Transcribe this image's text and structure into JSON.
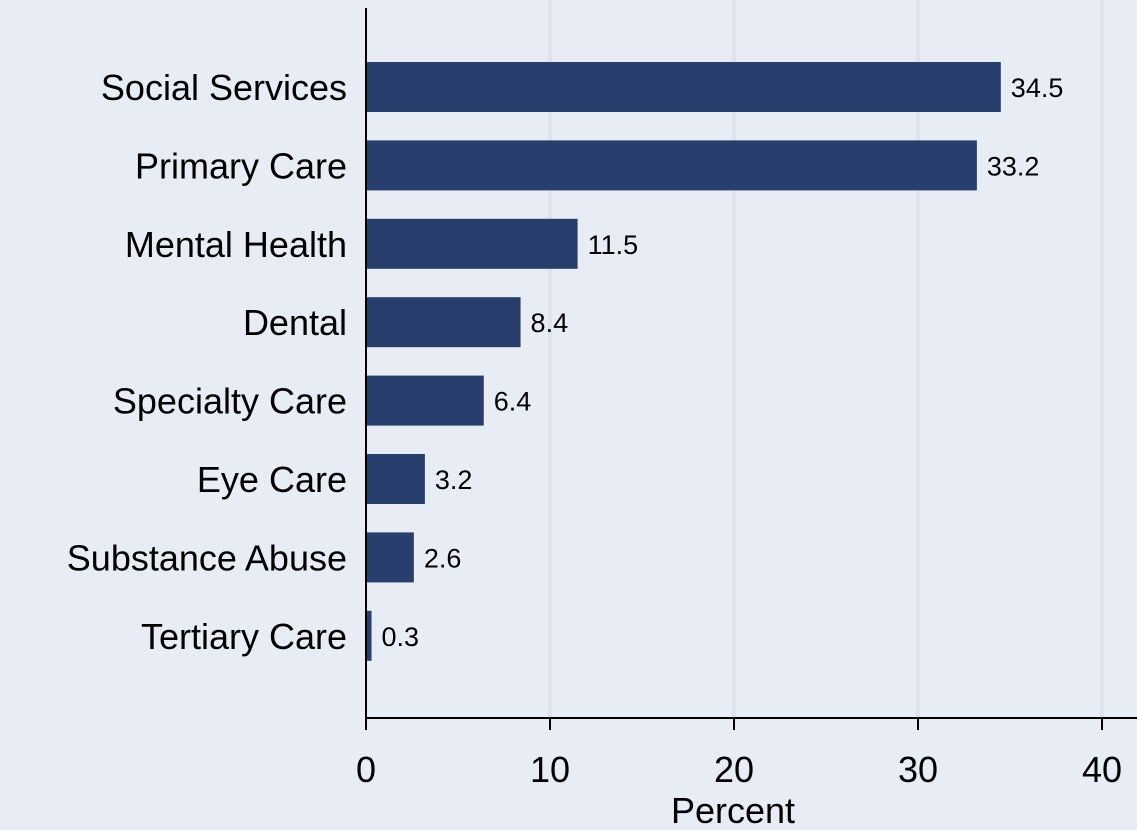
{
  "chart_data": {
    "type": "bar",
    "orientation": "horizontal",
    "categories": [
      "Social Services",
      "Primary Care",
      "Mental Health",
      "Dental",
      "Specialty Care",
      "Eye Care",
      "Substance Abuse",
      "Tertiary Care"
    ],
    "values": [
      34.5,
      33.2,
      11.5,
      8.4,
      6.4,
      3.2,
      2.6,
      0.3
    ],
    "value_labels": [
      "34.5",
      "33.2",
      "11.5",
      "8.4",
      "6.4",
      "3.2",
      "2.6",
      "0.3"
    ],
    "xlabel": "Percent",
    "ylabel": "",
    "title": "",
    "xlim": [
      0,
      40
    ],
    "xticks": [
      0,
      10,
      20,
      30,
      40
    ],
    "xtick_labels": [
      "0",
      "10",
      "20",
      "30",
      "40"
    ],
    "grid": "vertical",
    "legend": "none",
    "colors": {
      "background": "#e8ecf4",
      "bar": "#283f6e",
      "grid": "#dde3ee",
      "axis": "#000000"
    }
  }
}
